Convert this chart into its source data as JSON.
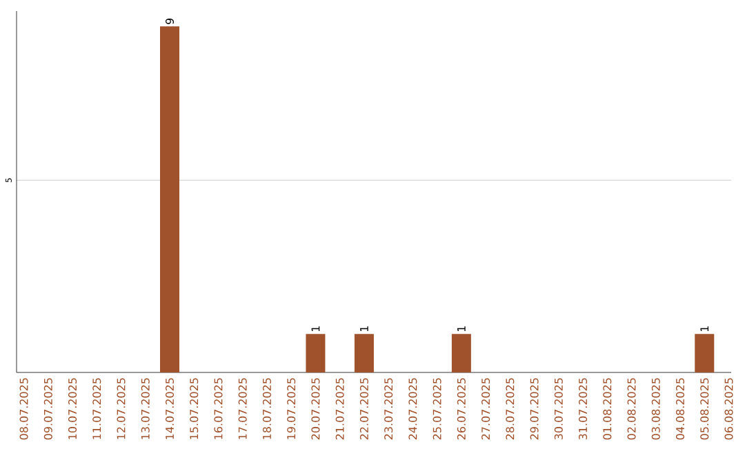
{
  "chart_data": {
    "type": "bar",
    "categories": [
      "08.07.2025",
      "09.07.2025",
      "10.07.2025",
      "11.07.2025",
      "12.07.2025",
      "13.07.2025",
      "14.07.2025",
      "15.07.2025",
      "16.07.2025",
      "17.07.2025",
      "18.07.2025",
      "19.07.2025",
      "20.07.2025",
      "21.07.2025",
      "22.07.2025",
      "23.07.2025",
      "24.07.2025",
      "25.07.2025",
      "26.07.2025",
      "27.07.2025",
      "28.07.2025",
      "29.07.2025",
      "30.07.2025",
      "31.07.2025",
      "01.08.2025",
      "02.08.2025",
      "03.08.2025",
      "04.08.2025",
      "05.08.2025",
      "06.08.2025"
    ],
    "values": [
      0,
      0,
      0,
      0,
      0,
      0,
      9,
      0,
      0,
      0,
      0,
      0,
      1,
      0,
      1,
      0,
      0,
      0,
      1,
      0,
      0,
      0,
      0,
      0,
      0,
      0,
      0,
      0,
      1,
      0
    ],
    "value_labels": [
      null,
      null,
      null,
      null,
      null,
      null,
      "9",
      null,
      null,
      null,
      null,
      null,
      "1",
      null,
      "1",
      null,
      null,
      null,
      "1",
      null,
      null,
      null,
      null,
      null,
      null,
      null,
      null,
      null,
      "1",
      null
    ],
    "color": "#a0522d",
    "ylim": [
      0,
      9.4
    ],
    "yticks": [
      5
    ],
    "grid": "y"
  }
}
